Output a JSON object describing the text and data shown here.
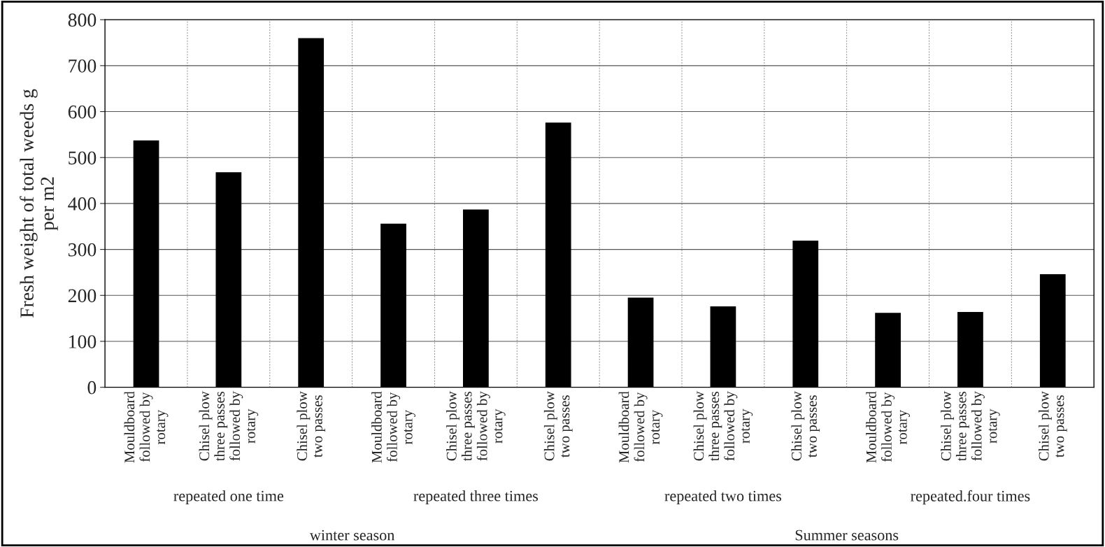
{
  "chart_data": {
    "type": "bar",
    "ylabel": "Fresh weight of total weeds g\nper m2",
    "categories": [
      "Mouldboard\nfollowed by\nrotary",
      "Chisel plow\nthree passes\nfollowed by\nrotary",
      "Chisel plow\ntwo passes",
      "Mouldboard\nfollowed by\nrotary",
      "Chisel plow\nthree passes\nfollowed by\nrotary",
      "Chisel plow\ntwo passes",
      "Mouldboard\nfollowed by\nrotary",
      "Chisel plow\nthree passes\nfollowed by\nrotary",
      "Chisel plow\ntwo passes",
      "Mouldboard\nfollowed by\nrotary",
      "Chisel plow\nthree passes\nfollowed by\nrotary",
      "Chisel plow\ntwo passes"
    ],
    "values": [
      536,
      467,
      759,
      355,
      386,
      575,
      194,
      175,
      318,
      161,
      163,
      245
    ],
    "color": "#000000",
    "ylim": [
      0,
      800
    ],
    "yticks": [
      0,
      100,
      200,
      300,
      400,
      500,
      600,
      700,
      800
    ],
    "grid": true,
    "annotations": [
      "repeated one time",
      "repeated three times",
      "repeated two times",
      "repeated.four times",
      "winter season",
      "Summer seasons"
    ]
  }
}
